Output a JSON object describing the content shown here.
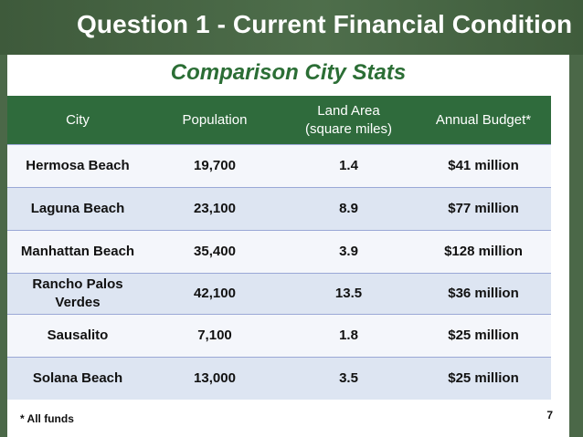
{
  "title": "Question 1 - Current Financial Condition",
  "subtitle": "Comparison City Stats",
  "table": {
    "headers": {
      "city": "City",
      "population": "Population",
      "land_area_line1": "Land Area",
      "land_area_line2": "(square miles)",
      "budget": "Annual Budget*"
    },
    "rows": [
      {
        "city_line1": "Hermosa Beach",
        "city_line2": "",
        "population": "19,700",
        "land_area": "1.4",
        "budget": "$41 million"
      },
      {
        "city_line1": "Laguna Beach",
        "city_line2": "",
        "population": "23,100",
        "land_area": "8.9",
        "budget": "$77 million"
      },
      {
        "city_line1": "Manhattan Beach",
        "city_line2": "",
        "population": "35,400",
        "land_area": "3.9",
        "budget": "$128 million"
      },
      {
        "city_line1": "Rancho Palos",
        "city_line2": "Verdes",
        "population": "42,100",
        "land_area": "13.5",
        "budget": "$36 million"
      },
      {
        "city_line1": "Sausalito",
        "city_line2": "",
        "population": "7,100",
        "land_area": "1.8",
        "budget": "$25 million"
      },
      {
        "city_line1": "Solana Beach",
        "city_line2": "",
        "population": "13,000",
        "land_area": "3.5",
        "budget": "$25 million"
      }
    ]
  },
  "footnote": "* All funds",
  "page_number": "7",
  "colors": {
    "header_bg": "#4e6e4b",
    "table_header_bg": "#2f6b3c",
    "subtitle": "#2b6e35",
    "row_light": "#f4f6fb",
    "row_dark": "#dde5f2"
  }
}
